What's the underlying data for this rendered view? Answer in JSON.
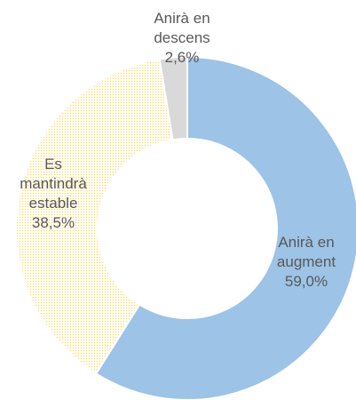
{
  "chart_data": {
    "type": "donut",
    "categories": [
      "Anirà en augment",
      "Es mantindrà estable",
      "Anirà en descens"
    ],
    "values": [
      59.0,
      38.5,
      2.6
    ],
    "value_labels": [
      "59,0%",
      "38,5%",
      "2,6%"
    ],
    "colors": [
      "#9dc3e6",
      "#ffd966",
      "#d9d9d9"
    ]
  }
}
